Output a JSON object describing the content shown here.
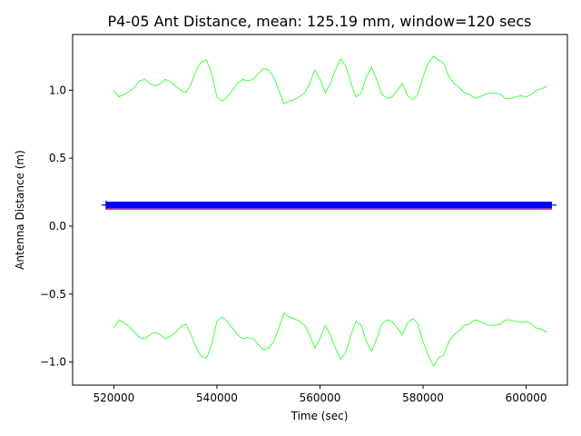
{
  "chart_data": {
    "type": "line",
    "title": "P4-05 Ant Distance, mean: 125.19 mm, window=120 secs",
    "xlabel": "Time (sec)",
    "ylabel": "Antenna Distance (m)",
    "xlim": [
      512000,
      608000
    ],
    "ylim": [
      -1.17,
      1.41
    ],
    "xticks": [
      520000,
      540000,
      560000,
      580000,
      600000
    ],
    "xtick_labels": [
      "520000",
      "540000",
      "560000",
      "580000",
      "600000"
    ],
    "yticks": [
      -1.0,
      -0.5,
      0.0,
      0.5,
      1.0
    ],
    "ytick_labels": [
      "−1.0",
      "−0.5",
      "0.0",
      "0.5",
      "1.0"
    ],
    "grid": false,
    "colors": {
      "upper": "#33ff33",
      "lower": "#33ff33",
      "distance": "#0000ff",
      "mean": "#ff0000"
    },
    "series": [
      {
        "role": "upper",
        "x": [
          520000,
          521000,
          522000,
          523000,
          524000,
          525000,
          526000,
          527000,
          528000,
          529000,
          530000,
          531000,
          532000,
          533000,
          534000,
          535000,
          536000,
          537000,
          538000,
          539000,
          540000,
          541000,
          542000,
          543000,
          544000,
          545000,
          546000,
          547000,
          548000,
          549000,
          550000,
          551000,
          552000,
          553000,
          554000,
          555000,
          556000,
          557000,
          558000,
          559000,
          560000,
          561000,
          562000,
          563000,
          564000,
          565000,
          566000,
          567000,
          568000,
          569000,
          570000,
          571000,
          572000,
          573000,
          574000,
          575000,
          576000,
          577000,
          578000,
          579000,
          580000,
          581000,
          582000,
          583000,
          584000,
          585000,
          586000,
          587000,
          588000,
          589000,
          590000,
          591000,
          592000,
          593000,
          594000,
          595000,
          596000,
          597000,
          598000,
          599000,
          600000,
          601000,
          602000,
          603000,
          604000
        ],
        "y": [
          1.0,
          0.95,
          0.97,
          0.99,
          1.02,
          1.07,
          1.08,
          1.05,
          1.03,
          1.05,
          1.08,
          1.06,
          1.03,
          1.0,
          0.98,
          1.05,
          1.15,
          1.21,
          1.22,
          1.12,
          0.95,
          0.92,
          0.95,
          1.0,
          1.05,
          1.08,
          1.07,
          1.08,
          1.12,
          1.16,
          1.15,
          1.1,
          1.0,
          0.9,
          0.92,
          0.93,
          0.95,
          0.98,
          1.05,
          1.15,
          1.08,
          0.98,
          1.05,
          1.15,
          1.23,
          1.18,
          1.05,
          0.95,
          0.98,
          1.1,
          1.17,
          1.08,
          0.97,
          0.94,
          0.95,
          1.0,
          1.05,
          0.96,
          0.93,
          0.97,
          1.1,
          1.2,
          1.25,
          1.22,
          1.2,
          1.1,
          1.05,
          1.02,
          0.98,
          0.97,
          0.94,
          0.95,
          0.97,
          0.98,
          0.98,
          0.97,
          0.94,
          0.94,
          0.95,
          0.96,
          0.95,
          0.97,
          1.0,
          1.01,
          1.03
        ]
      },
      {
        "role": "lower",
        "x": [
          520000,
          521000,
          522000,
          523000,
          524000,
          525000,
          526000,
          527000,
          528000,
          529000,
          530000,
          531000,
          532000,
          533000,
          534000,
          535000,
          536000,
          537000,
          538000,
          539000,
          540000,
          541000,
          542000,
          543000,
          544000,
          545000,
          546000,
          547000,
          548000,
          549000,
          550000,
          551000,
          552000,
          553000,
          554000,
          555000,
          556000,
          557000,
          558000,
          559000,
          560000,
          561000,
          562000,
          563000,
          564000,
          565000,
          566000,
          567000,
          568000,
          569000,
          570000,
          571000,
          572000,
          573000,
          574000,
          575000,
          576000,
          577000,
          578000,
          579000,
          580000,
          581000,
          582000,
          583000,
          584000,
          585000,
          586000,
          587000,
          588000,
          589000,
          590000,
          591000,
          592000,
          593000,
          594000,
          595000,
          596000,
          597000,
          598000,
          599000,
          600000,
          601000,
          602000,
          603000,
          604000
        ],
        "y": [
          -0.75,
          -0.69,
          -0.71,
          -0.74,
          -0.78,
          -0.82,
          -0.83,
          -0.8,
          -0.78,
          -0.8,
          -0.83,
          -0.81,
          -0.78,
          -0.74,
          -0.72,
          -0.8,
          -0.9,
          -0.96,
          -0.97,
          -0.87,
          -0.7,
          -0.67,
          -0.7,
          -0.75,
          -0.8,
          -0.83,
          -0.82,
          -0.83,
          -0.87,
          -0.91,
          -0.9,
          -0.85,
          -0.75,
          -0.64,
          -0.67,
          -0.68,
          -0.7,
          -0.73,
          -0.8,
          -0.9,
          -0.83,
          -0.73,
          -0.8,
          -0.9,
          -0.98,
          -0.93,
          -0.8,
          -0.7,
          -0.73,
          -0.85,
          -0.92,
          -0.83,
          -0.72,
          -0.69,
          -0.7,
          -0.75,
          -0.8,
          -0.71,
          -0.68,
          -0.72,
          -0.85,
          -0.95,
          -1.03,
          -0.97,
          -0.95,
          -0.85,
          -0.8,
          -0.77,
          -0.73,
          -0.72,
          -0.69,
          -0.7,
          -0.72,
          -0.73,
          -0.73,
          -0.72,
          -0.69,
          -0.69,
          -0.7,
          -0.71,
          -0.7,
          -0.72,
          -0.75,
          -0.76,
          -0.78
        ]
      },
      {
        "role": "distance",
        "x": [
          518500,
          605000
        ],
        "y": [
          0.155,
          0.155
        ],
        "band": [
          0.13,
          0.18
        ]
      },
      {
        "role": "mean",
        "x": [
          518500,
          605000
        ],
        "y": [
          0.125,
          0.125
        ]
      }
    ]
  }
}
